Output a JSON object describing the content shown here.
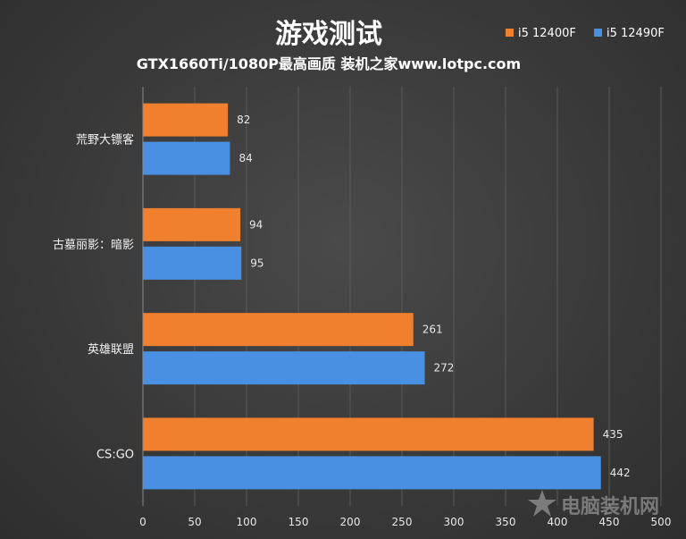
{
  "chart_data": {
    "type": "bar",
    "orientation": "horizontal",
    "title": "游戏测试",
    "subtitle": "GTX1660Ti/1080P最高画质 装机之家www.lotpc.com",
    "categories": [
      "荒野大镖客",
      "古墓丽影：暗影",
      "英雄联盟",
      "CS:GO"
    ],
    "series": [
      {
        "name": "i5 12400F",
        "color": "#F07F2E",
        "values": [
          82,
          94,
          261,
          435
        ]
      },
      {
        "name": "i5 12490F",
        "color": "#4A90E2",
        "values": [
          84,
          95,
          272,
          442
        ]
      }
    ],
    "xlim": [
      0,
      500
    ],
    "xticks": [
      0,
      50,
      100,
      150,
      200,
      250,
      300,
      350,
      400,
      450,
      500
    ],
    "grid": true,
    "legend": "top-right",
    "watermark": "电脑装机网"
  }
}
